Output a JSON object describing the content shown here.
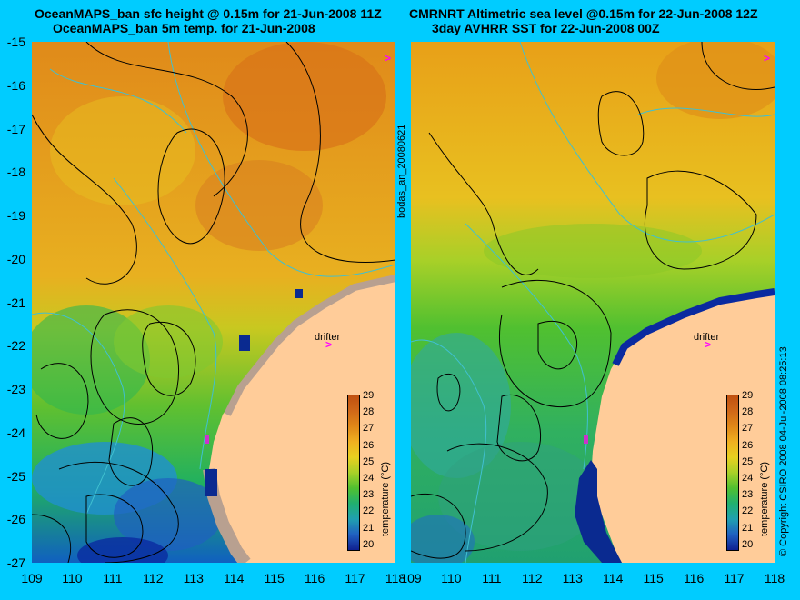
{
  "titles": {
    "left_line1": "OceanMAPS_ban sfc height @ 0.15m for 21-Jun-2008 11Z",
    "left_line2": "OceanMAPS_ban 5m temp. for 21-Jun-2008",
    "right_line1": "CMRNRT Altimetric sea level  @0.15m  for 22-Jun-2008 12Z",
    "right_line2": "3day AVHRR SST for 22-Jun-2008 00Z"
  },
  "y_ticks": [
    "-15",
    "-16",
    "-17",
    "-18",
    "-19",
    "-20",
    "-21",
    "-22",
    "-23",
    "-24",
    "-25",
    "-26",
    "-27"
  ],
  "x_ticks_left": [
    "109",
    "110",
    "111",
    "112",
    "113",
    "114",
    "115",
    "116",
    "117",
    "118"
  ],
  "x_ticks_right": [
    "109",
    "110",
    "111",
    "112",
    "113",
    "114",
    "115",
    "116",
    "117",
    "118"
  ],
  "middle_label": "bodas_an_20080621",
  "right_label": "© Copyright CSIRO 2008   04-Jul-2008 08:25:13",
  "colorbar": {
    "ticks": [
      "29",
      "28",
      "27",
      "26",
      "25",
      "24",
      "23",
      "22",
      "21",
      "20"
    ],
    "unit": "temperature (°C)"
  },
  "drifter": {
    "label": "drifter",
    "marker": ">"
  },
  "colors": {
    "background": "#00ccff",
    "land": "#ffcc99",
    "drifter": "#ff00ff",
    "contour_ssh": "#000000",
    "contour_bathy": "#40c0d0"
  }
}
